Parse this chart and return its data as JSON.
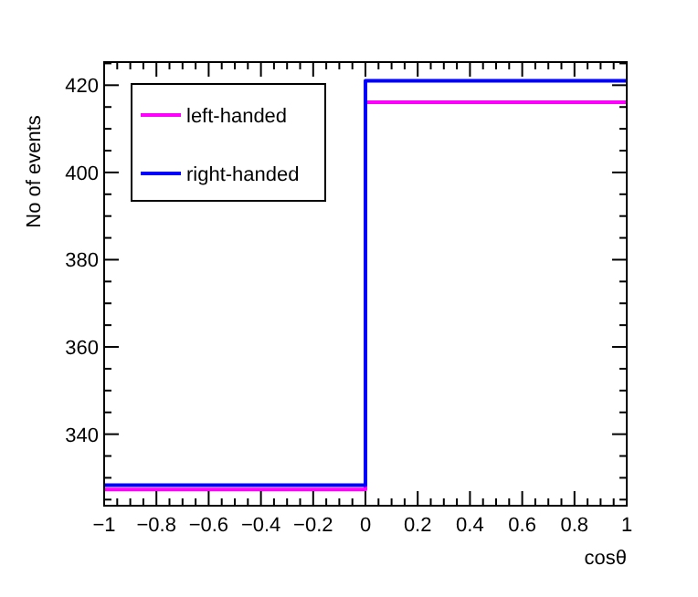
{
  "chart_data": {
    "type": "histogram",
    "xlabel": "cosθ",
    "ylabel": "No of events",
    "bins": [
      -1,
      0,
      1
    ],
    "series": [
      {
        "name": "left-handed",
        "color": "#ff00ff",
        "values": [
          327.3,
          416.1
        ]
      },
      {
        "name": "right-handed",
        "color": "#0000ff",
        "values": [
          328.3,
          421
        ]
      }
    ],
    "xlim": [
      -1,
      1
    ],
    "xticks": [
      -1,
      -0.8,
      -0.6,
      -0.4,
      -0.2,
      0,
      0.2,
      0.4,
      0.6,
      0.8,
      1
    ],
    "ylim": [
      323.6,
      425.3
    ],
    "yticks": [
      340,
      360,
      380,
      400,
      420
    ],
    "legend": "top left",
    "grid": false
  }
}
